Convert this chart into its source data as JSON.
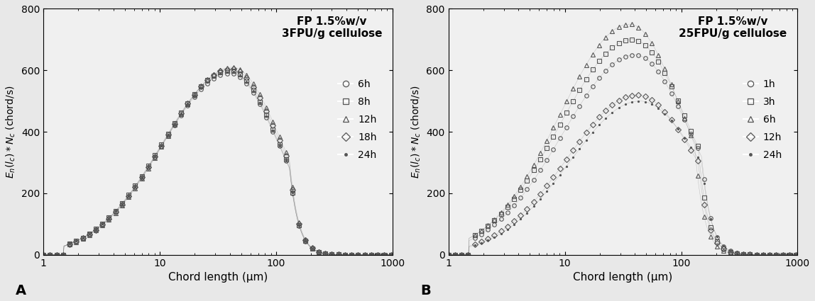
{
  "panel_A": {
    "title": "FP 1.5%w/v\n3FPU/g cellulose",
    "legend_labels": [
      "6h",
      "8h",
      "12h",
      "18h",
      "24h"
    ],
    "markers": [
      "o",
      "s",
      "^",
      "D",
      "."
    ],
    "peak_values": [
      590,
      600,
      610,
      605,
      595
    ],
    "peak_positions": [
      40,
      40,
      42,
      41,
      40
    ],
    "label": "A"
  },
  "panel_B": {
    "title": "FP 1.5%w/v\n25FPU/g cellulose",
    "legend_labels": [
      "1h",
      "3h",
      "6h",
      "12h",
      "24h"
    ],
    "markers": [
      "o",
      "s",
      "^",
      "D",
      "."
    ],
    "peak_values": [
      650,
      700,
      750,
      520,
      500
    ],
    "peak_positions": [
      40,
      38,
      36,
      42,
      44
    ],
    "label": "B"
  },
  "xlabel": "Chord length (μm)",
  "ylabel": "E_n(l_c)*N_c (chord/s)",
  "xlim": [
    1,
    1000
  ],
  "ylim": [
    0,
    800
  ],
  "yticks": [
    0,
    200,
    400,
    600,
    800
  ],
  "bg_color": "#f0f0f0",
  "marker_color": "#555555",
  "marker_size": 4,
  "line_color": "#333333"
}
